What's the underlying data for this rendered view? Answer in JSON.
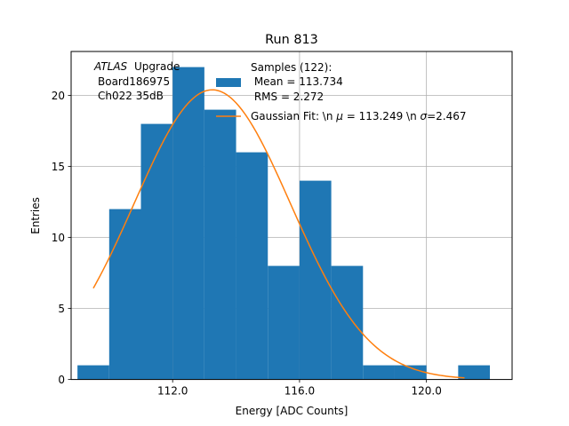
{
  "chart_data": {
    "type": "histogram",
    "title": "Run 813",
    "xlabel": "Energy [ADC Counts]",
    "ylabel": "Entries",
    "xlim": [
      108.8,
      122.7
    ],
    "ylim": [
      0,
      23.1
    ],
    "grid": true,
    "x_ticks": [
      112.0,
      116.0,
      120.0
    ],
    "x_tick_labels": [
      "112.0",
      "116.0",
      "120.0"
    ],
    "y_ticks": [
      0,
      5,
      10,
      15,
      20
    ],
    "y_tick_labels": [
      "0",
      "5",
      "10",
      "15",
      "20"
    ],
    "histogram": {
      "name": "Samples (122):\n Mean = 113.734\n RMS = 2.272",
      "color": "#1f77b4",
      "bins": [
        {
          "x0": 109.0,
          "x1": 110.0,
          "count": 1
        },
        {
          "x0": 110.0,
          "x1": 111.0,
          "count": 12
        },
        {
          "x0": 111.0,
          "x1": 112.0,
          "count": 18
        },
        {
          "x0": 112.0,
          "x1": 113.0,
          "count": 22
        },
        {
          "x0": 113.0,
          "x1": 114.0,
          "count": 19
        },
        {
          "x0": 114.0,
          "x1": 115.0,
          "count": 16
        },
        {
          "x0": 115.0,
          "x1": 116.0,
          "count": 8
        },
        {
          "x0": 116.0,
          "x1": 117.0,
          "count": 14
        },
        {
          "x0": 117.0,
          "x1": 118.0,
          "count": 8
        },
        {
          "x0": 118.0,
          "x1": 119.0,
          "count": 1
        },
        {
          "x0": 119.0,
          "x1": 120.0,
          "count": 1
        },
        {
          "x0": 120.0,
          "x1": 121.0,
          "count": 0
        },
        {
          "x0": 121.0,
          "x1": 122.0,
          "count": 1
        }
      ]
    },
    "fit": {
      "type": "gaussian",
      "name": "Gaussian Fit: \\n $\\mu$ = 113.249 \\n $\\sigma$=2.467",
      "color": "#ff7f0e",
      "amplitude": 20.4,
      "mu": 113.249,
      "sigma": 2.467,
      "x_range": [
        109.5,
        121.2
      ]
    },
    "annotation": [
      "ATLAS",
      "Upgrade",
      "Board186975",
      "Ch022 35dB"
    ],
    "legend": {
      "placement": "top-right",
      "hist_lines": [
        "Samples (122):",
        " Mean = 113.734",
        " RMS = 2.272"
      ],
      "fit_label_parts": [
        "Gaussian Fit: \\n ",
        "μ",
        " = 113.249 \\n ",
        "σ",
        "=2.467"
      ]
    }
  }
}
